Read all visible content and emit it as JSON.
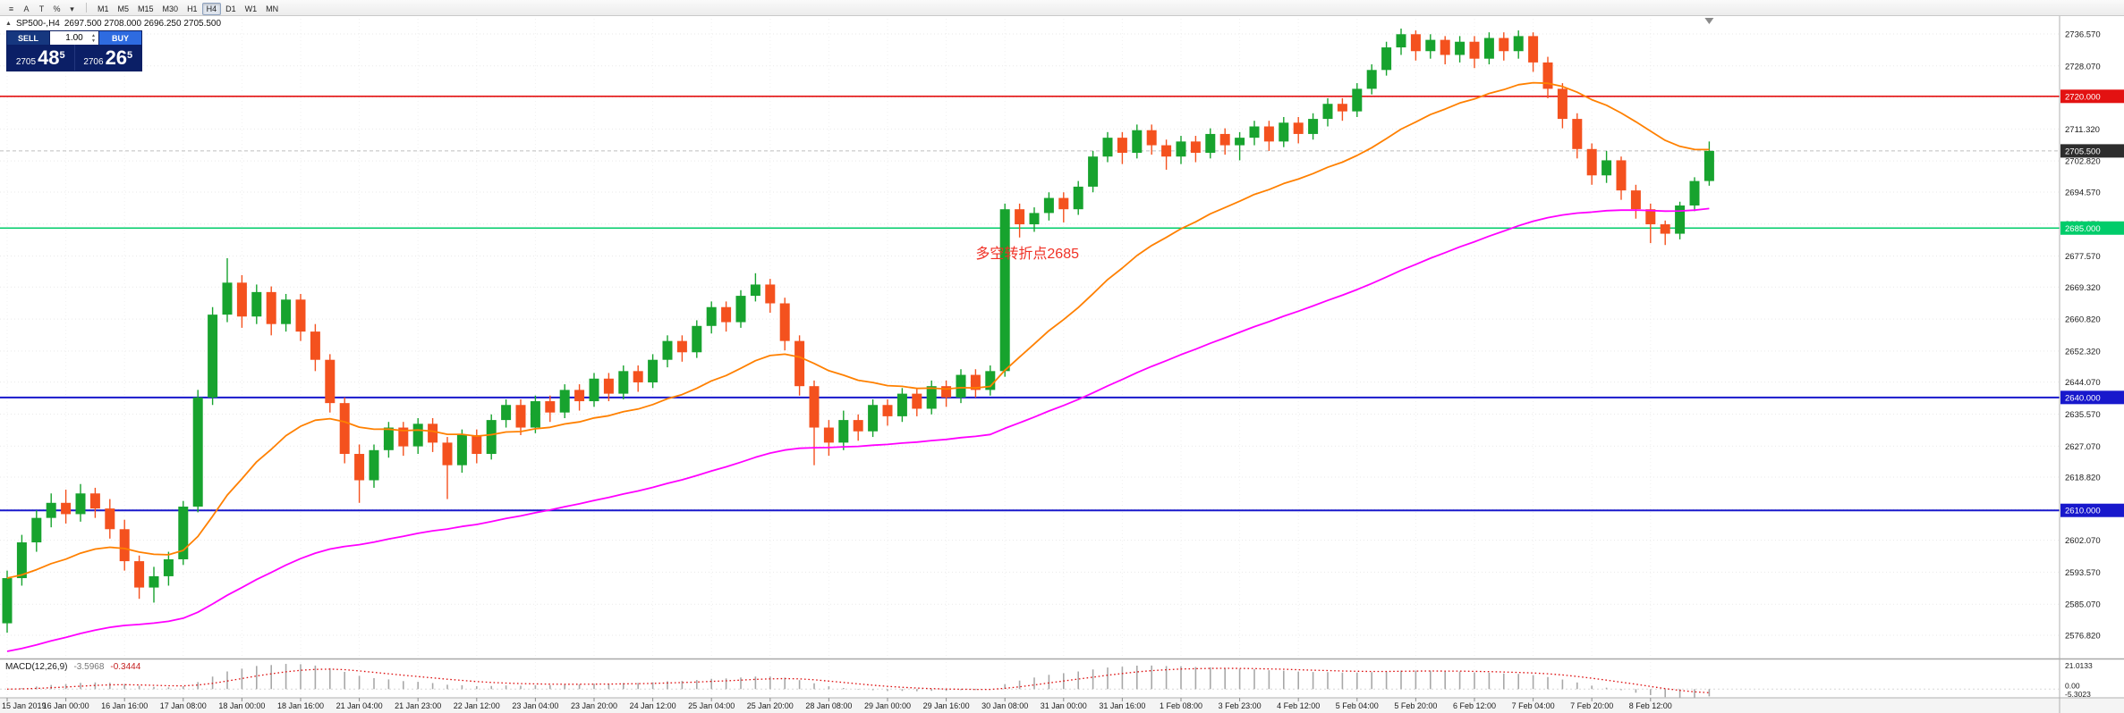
{
  "toolbar": {
    "icons": [
      {
        "name": "menu-icon",
        "glyph": "≡"
      },
      {
        "name": "arrow-tool-icon",
        "glyph": "A"
      },
      {
        "name": "text-tool-icon",
        "glyph": "T"
      },
      {
        "name": "indicator-icon",
        "glyph": "%"
      },
      {
        "name": "caret-down-icon",
        "glyph": "▾"
      }
    ],
    "timeframes": [
      {
        "label": "M1",
        "active": false
      },
      {
        "label": "M5",
        "active": false
      },
      {
        "label": "M15",
        "active": false
      },
      {
        "label": "M30",
        "active": false
      },
      {
        "label": "H1",
        "active": false
      },
      {
        "label": "H4",
        "active": true
      },
      {
        "label": "D1",
        "active": false
      },
      {
        "label": "W1",
        "active": false
      },
      {
        "label": "MN",
        "active": false
      }
    ]
  },
  "chart": {
    "collapse_glyph": "▲",
    "symbol_period": "SP500-,H4",
    "ohlc_text": "2697.500 2708.000 2696.250 2705.500"
  },
  "trade_panel": {
    "sell_label": "SELL",
    "buy_label": "BUY",
    "volume": "1.00",
    "sell_price": {
      "big": "2705",
      "large": "48",
      "sup": "5"
    },
    "buy_price": {
      "big": "2706",
      "large": "26",
      "sup": "5"
    }
  },
  "macd_panel": {
    "title": "MACD(12,26,9)",
    "main_value": "-3.5968",
    "signal_value": "-0.3444"
  },
  "chart_data": {
    "type": "candlestick",
    "symbol": "SP500-",
    "timeframe": "H4",
    "last_bar_ohlc": {
      "o": 2697.5,
      "h": 2708.0,
      "l": 2696.25,
      "c": 2705.5
    },
    "colors": {
      "bull": "#17a32e",
      "bear": "#f4511e",
      "grid": "#e9e9e9",
      "background": "#ffffff"
    },
    "y_ticks": [
      "2736.570",
      "2728.070",
      "2719.820",
      "2711.320",
      "2702.820",
      "2694.570",
      "2686.070",
      "2677.570",
      "2669.320",
      "2660.820",
      "2652.320",
      "2644.070",
      "2635.570",
      "2627.070",
      "2618.820",
      "2610.320",
      "2602.070",
      "2593.570",
      "2585.070",
      "2576.820"
    ],
    "x_labels": [
      "15 Jan 2019",
      "16 Jan 00:00",
      "16 Jan 16:00",
      "17 Jan 08:00",
      "18 Jan 00:00",
      "18 Jan 16:00",
      "21 Jan 04:00",
      "21 Jan 23:00",
      "22 Jan 12:00",
      "23 Jan 04:00",
      "23 Jan 20:00",
      "24 Jan 12:00",
      "25 Jan 04:00",
      "25 Jan 20:00",
      "28 Jan 08:00",
      "29 Jan 00:00",
      "29 Jan 16:00",
      "30 Jan 08:00",
      "31 Jan 00:00",
      "31 Jan 16:00",
      "1 Feb 08:00",
      "3 Feb 23:00",
      "4 Feb 12:00",
      "5 Feb 04:00",
      "5 Feb 20:00",
      "6 Feb 12:00",
      "7 Feb 04:00",
      "7 Feb 20:00",
      "8 Feb 12:00"
    ],
    "x_label_step": 4,
    "hlines": [
      {
        "price": 2720.0,
        "label": "2720.000",
        "color": "#e31212",
        "width": 1.6
      },
      {
        "price": 2685.0,
        "label": "2685.000",
        "color": "#00cc6a",
        "width": 1.6
      },
      {
        "price": 2640.0,
        "label": "2640.000",
        "color": "#1818cc",
        "width": 2.0
      },
      {
        "price": 2610.0,
        "label": "2610.000",
        "color": "#1818cc",
        "width": 2.0
      }
    ],
    "current_price": {
      "value": 2705.5,
      "label": "2705.500",
      "tag_color": "#2d2d2d"
    },
    "annotation": {
      "text": "多空转折点2685",
      "candle_index": 66,
      "price": 2677,
      "color": "#f03126",
      "font_size": 16
    },
    "moving_averages": [
      {
        "period": 21,
        "seed": null,
        "color": "#ff8000",
        "width": 1.8
      },
      {
        "period": 72,
        "seed": 2572,
        "color": "#ff00ff",
        "width": 1.8
      }
    ],
    "macd": {
      "params": [
        12,
        26,
        9
      ],
      "scale_max": 21.0133,
      "scale_min": -5.3023,
      "labels": {
        "max": "21.0133",
        "zero": "0.00",
        "min": "-5.3023"
      },
      "histogram_color": "#a8a8a8",
      "signal_color": "#dd1111"
    },
    "candles": [
      [
        2580.0,
        2594.0,
        2577.5,
        2592.0
      ],
      [
        2592.0,
        2603.5,
        2590.0,
        2601.5
      ],
      [
        2601.5,
        2610.0,
        2599.0,
        2608.0
      ],
      [
        2608.0,
        2614.5,
        2605.5,
        2612.0
      ],
      [
        2612.0,
        2615.5,
        2606.5,
        2609.0
      ],
      [
        2609.0,
        2617.0,
        2607.0,
        2614.5
      ],
      [
        2614.5,
        2616.0,
        2608.0,
        2610.5
      ],
      [
        2610.5,
        2613.0,
        2602.5,
        2605.0
      ],
      [
        2605.0,
        2607.5,
        2594.0,
        2596.5
      ],
      [
        2596.5,
        2598.0,
        2586.5,
        2589.5
      ],
      [
        2589.5,
        2595.0,
        2585.5,
        2592.5
      ],
      [
        2592.5,
        2599.0,
        2590.0,
        2597.0
      ],
      [
        2597.0,
        2612.5,
        2595.5,
        2611.0
      ],
      [
        2611.0,
        2642.0,
        2609.5,
        2640.0
      ],
      [
        2640.0,
        2664.0,
        2638.0,
        2662.0
      ],
      [
        2662.0,
        2677.0,
        2660.0,
        2670.5
      ],
      [
        2670.5,
        2672.5,
        2658.5,
        2661.5
      ],
      [
        2661.5,
        2670.0,
        2659.5,
        2668.0
      ],
      [
        2668.0,
        2669.5,
        2656.5,
        2659.5
      ],
      [
        2659.5,
        2667.5,
        2657.5,
        2666.0
      ],
      [
        2666.0,
        2667.5,
        2655.0,
        2657.5
      ],
      [
        2657.5,
        2659.5,
        2647.0,
        2650.0
      ],
      [
        2650.0,
        2651.5,
        2636.0,
        2638.5
      ],
      [
        2638.5,
        2640.0,
        2622.5,
        2625.0
      ],
      [
        2625.0,
        2627.5,
        2612.0,
        2618.0
      ],
      [
        2618.0,
        2627.5,
        2616.0,
        2626.0
      ],
      [
        2626.0,
        2633.5,
        2624.0,
        2632.0
      ],
      [
        2632.0,
        2633.5,
        2624.5,
        2627.0
      ],
      [
        2627.0,
        2634.5,
        2625.0,
        2633.0
      ],
      [
        2633.0,
        2634.5,
        2625.5,
        2628.0
      ],
      [
        2628.0,
        2629.5,
        2613.0,
        2622.0
      ],
      [
        2622.0,
        2631.5,
        2620.0,
        2630.0
      ],
      [
        2630.0,
        2631.5,
        2622.5,
        2625.0
      ],
      [
        2625.0,
        2635.5,
        2623.5,
        2634.0
      ],
      [
        2634.0,
        2639.5,
        2632.0,
        2638.0
      ],
      [
        2638.0,
        2639.5,
        2630.0,
        2632.0
      ],
      [
        2632.0,
        2640.5,
        2630.5,
        2639.0
      ],
      [
        2639.0,
        2640.5,
        2633.5,
        2636.0
      ],
      [
        2636.0,
        2643.5,
        2634.5,
        2642.0
      ],
      [
        2642.0,
        2643.5,
        2636.5,
        2639.0
      ],
      [
        2639.0,
        2646.5,
        2637.5,
        2645.0
      ],
      [
        2645.0,
        2646.5,
        2639.0,
        2641.0
      ],
      [
        2641.0,
        2648.5,
        2639.5,
        2647.0
      ],
      [
        2647.0,
        2648.5,
        2641.5,
        2644.0
      ],
      [
        2644.0,
        2651.5,
        2642.5,
        2650.0
      ],
      [
        2650.0,
        2656.5,
        2648.0,
        2655.0
      ],
      [
        2655.0,
        2656.5,
        2649.5,
        2652.0
      ],
      [
        2652.0,
        2660.5,
        2650.5,
        2659.0
      ],
      [
        2659.0,
        2665.5,
        2657.0,
        2664.0
      ],
      [
        2664.0,
        2665.5,
        2657.5,
        2660.0
      ],
      [
        2660.0,
        2668.5,
        2658.5,
        2667.0
      ],
      [
        2667.0,
        2673.0,
        2665.5,
        2670.0
      ],
      [
        2670.0,
        2671.5,
        2662.5,
        2665.0
      ],
      [
        2665.0,
        2666.5,
        2652.5,
        2655.0
      ],
      [
        2655.0,
        2656.5,
        2640.5,
        2643.0
      ],
      [
        2643.0,
        2644.5,
        2622.0,
        2632.0
      ],
      [
        2632.0,
        2634.0,
        2624.5,
        2628.0
      ],
      [
        2628.0,
        2636.5,
        2626.0,
        2634.0
      ],
      [
        2634.0,
        2635.5,
        2628.5,
        2631.0
      ],
      [
        2631.0,
        2639.5,
        2629.5,
        2638.0
      ],
      [
        2638.0,
        2639.5,
        2632.5,
        2635.0
      ],
      [
        2635.0,
        2642.5,
        2633.5,
        2641.0
      ],
      [
        2641.0,
        2642.5,
        2635.0,
        2637.0
      ],
      [
        2637.0,
        2644.5,
        2635.5,
        2643.0
      ],
      [
        2643.0,
        2644.5,
        2637.5,
        2640.0
      ],
      [
        2640.0,
        2647.5,
        2638.5,
        2646.0
      ],
      [
        2646.0,
        2647.5,
        2640.0,
        2642.0
      ],
      [
        2642.0,
        2648.5,
        2640.5,
        2647.0
      ],
      [
        2647.0,
        2691.5,
        2645.5,
        2690.0
      ],
      [
        2690.0,
        2691.5,
        2682.5,
        2686.0
      ],
      [
        2686.0,
        2690.5,
        2684.0,
        2689.0
      ],
      [
        2689.0,
        2694.5,
        2687.0,
        2693.0
      ],
      [
        2693.0,
        2694.5,
        2686.5,
        2690.0
      ],
      [
        2690.0,
        2697.5,
        2688.5,
        2696.0
      ],
      [
        2696.0,
        2705.5,
        2694.5,
        2704.0
      ],
      [
        2704.0,
        2710.5,
        2702.5,
        2709.0
      ],
      [
        2709.0,
        2710.5,
        2702.0,
        2705.0
      ],
      [
        2705.0,
        2712.5,
        2703.5,
        2711.0
      ],
      [
        2711.0,
        2712.5,
        2704.5,
        2707.0
      ],
      [
        2707.0,
        2708.5,
        2700.5,
        2704.0
      ],
      [
        2704.0,
        2709.5,
        2702.0,
        2708.0
      ],
      [
        2708.0,
        2709.5,
        2702.5,
        2705.0
      ],
      [
        2705.0,
        2711.5,
        2703.5,
        2710.0
      ],
      [
        2710.0,
        2711.5,
        2704.5,
        2707.0
      ],
      [
        2707.0,
        2710.5,
        2703.0,
        2709.0
      ],
      [
        2709.0,
        2713.5,
        2707.0,
        2712.0
      ],
      [
        2712.0,
        2713.5,
        2705.5,
        2708.0
      ],
      [
        2708.0,
        2714.5,
        2706.5,
        2713.0
      ],
      [
        2713.0,
        2714.5,
        2707.5,
        2710.0
      ],
      [
        2710.0,
        2715.5,
        2708.5,
        2714.0
      ],
      [
        2714.0,
        2719.5,
        2712.0,
        2718.0
      ],
      [
        2718.0,
        2719.5,
        2713.5,
        2716.0
      ],
      [
        2716.0,
        2723.5,
        2714.5,
        2722.0
      ],
      [
        2722.0,
        2728.5,
        2720.5,
        2727.0
      ],
      [
        2727.0,
        2734.5,
        2725.5,
        2733.0
      ],
      [
        2733.0,
        2738.0,
        2731.0,
        2736.5
      ],
      [
        2736.5,
        2737.5,
        2729.5,
        2732.0
      ],
      [
        2732.0,
        2736.5,
        2730.0,
        2735.0
      ],
      [
        2735.0,
        2736.0,
        2728.5,
        2731.0
      ],
      [
        2731.0,
        2736.0,
        2729.0,
        2734.5
      ],
      [
        2734.5,
        2736.0,
        2727.5,
        2730.0
      ],
      [
        2730.0,
        2737.0,
        2728.5,
        2735.5
      ],
      [
        2735.5,
        2737.0,
        2729.5,
        2732.0
      ],
      [
        2732.0,
        2737.5,
        2730.0,
        2736.0
      ],
      [
        2736.0,
        2737.0,
        2726.5,
        2729.0
      ],
      [
        2729.0,
        2730.5,
        2719.5,
        2722.0
      ],
      [
        2722.0,
        2723.5,
        2711.5,
        2714.0
      ],
      [
        2714.0,
        2715.5,
        2703.5,
        2706.0
      ],
      [
        2706.0,
        2707.5,
        2696.5,
        2699.0
      ],
      [
        2699.0,
        2705.5,
        2697.0,
        2703.0
      ],
      [
        2703.0,
        2704.0,
        2692.5,
        2695.0
      ],
      [
        2695.0,
        2696.5,
        2687.5,
        2690.0
      ],
      [
        2690.0,
        2691.5,
        2681.0,
        2686.0
      ],
      [
        2686.0,
        2687.0,
        2680.5,
        2683.5
      ],
      [
        2683.5,
        2692.0,
        2682.0,
        2691.0
      ],
      [
        2691.0,
        2698.5,
        2689.5,
        2697.5
      ],
      [
        2697.5,
        2708.0,
        2696.25,
        2705.5
      ]
    ]
  }
}
